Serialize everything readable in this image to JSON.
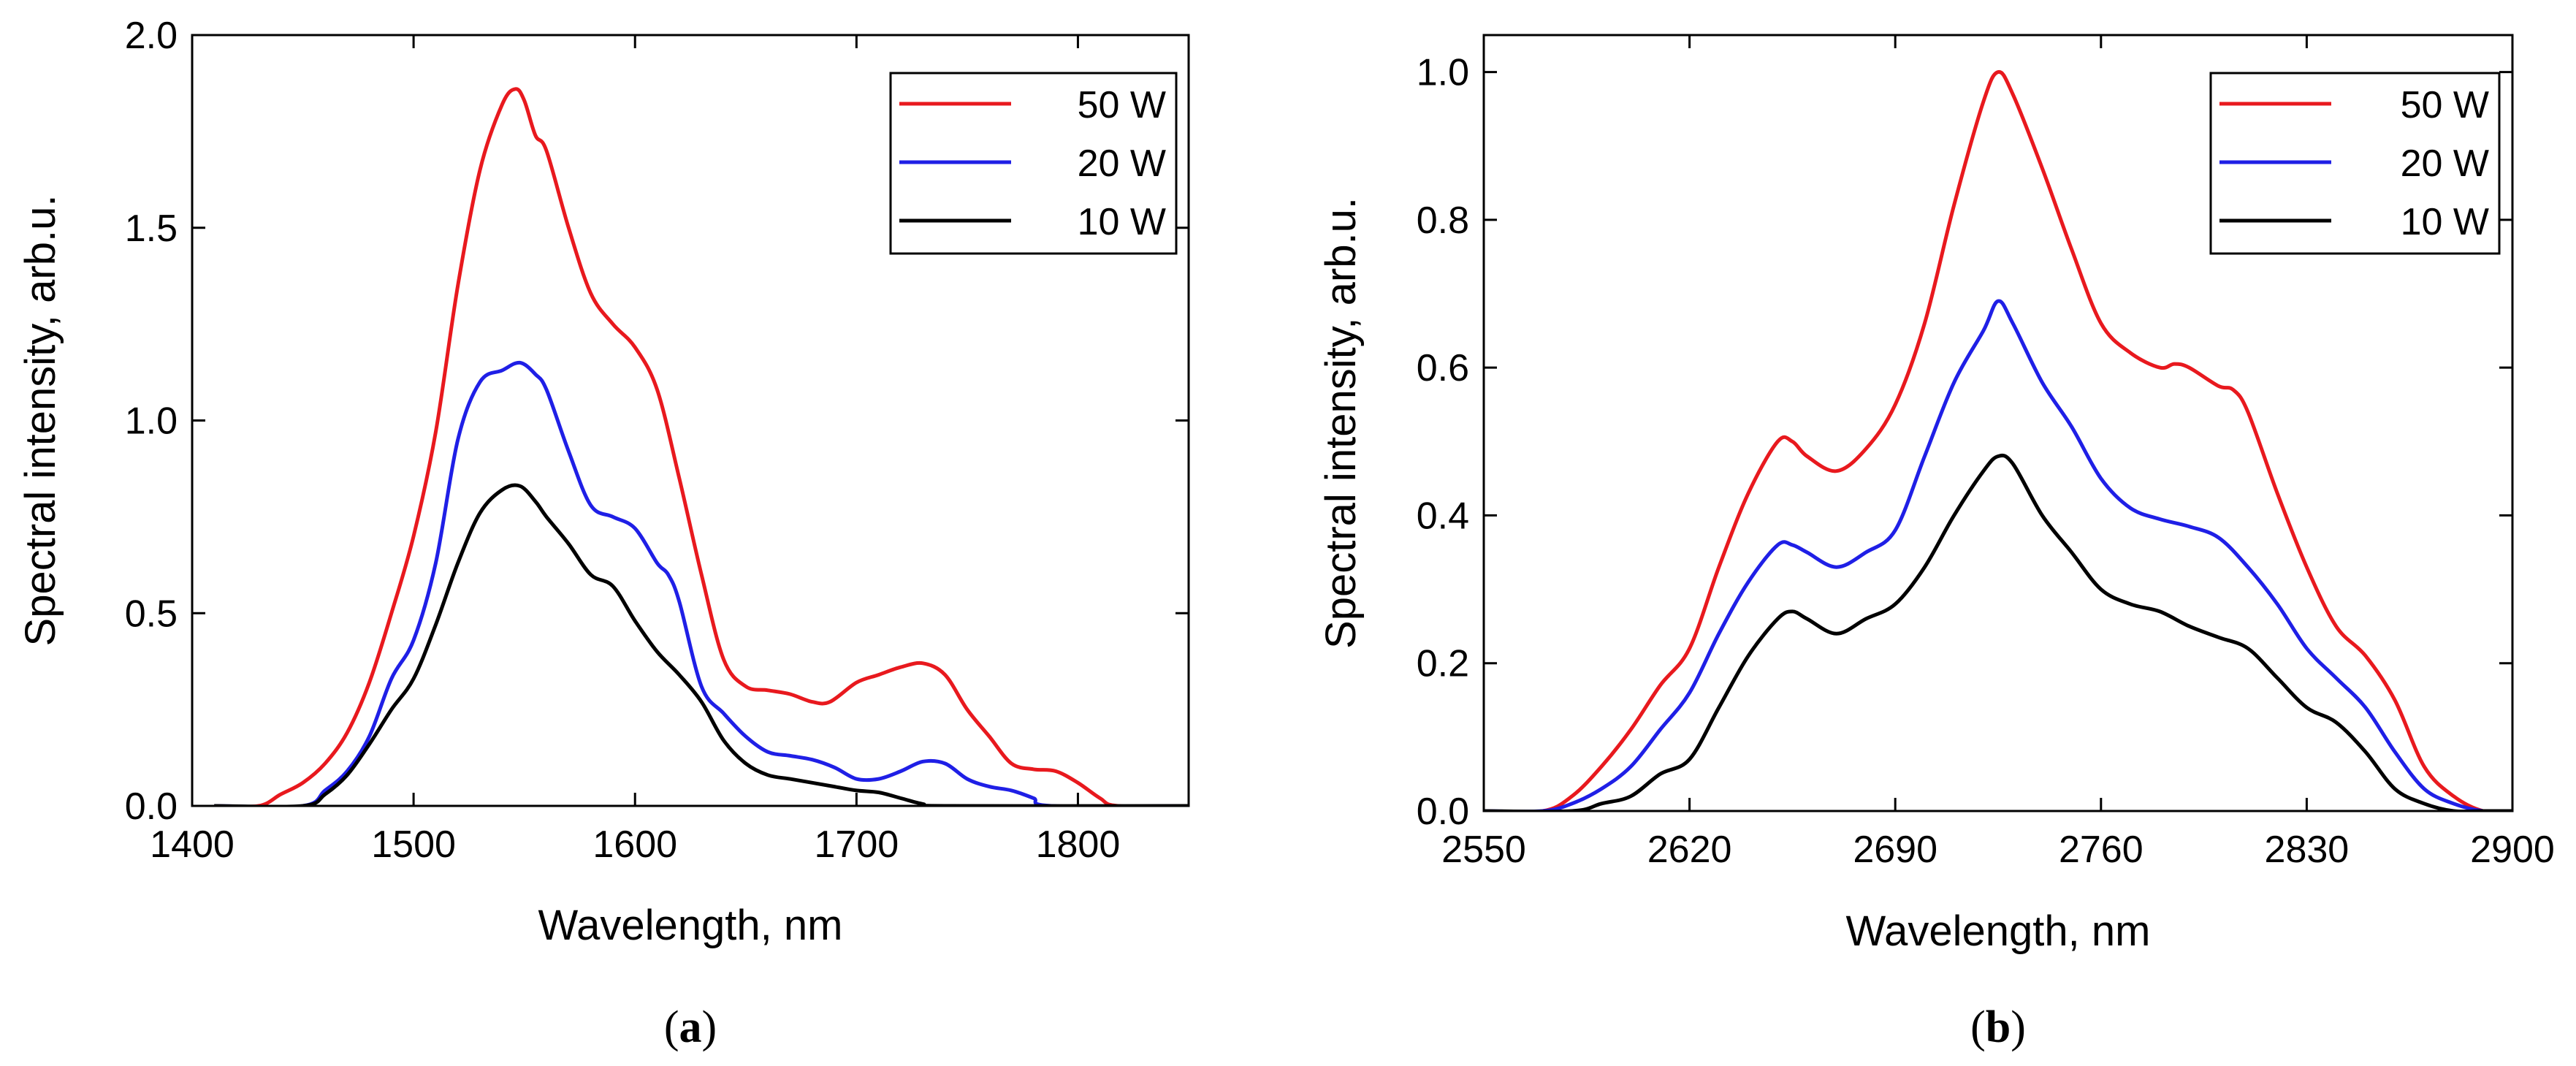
{
  "chart_data": [
    {
      "type": "line",
      "panel_label": {
        "open": "(",
        "letter": "a",
        "close": ")"
      },
      "xlabel": "Wavelength, nm",
      "ylabel": "Spectral intensity, arb.u.",
      "xlim": [
        1400,
        1850
      ],
      "ylim": [
        0,
        2.0
      ],
      "xticks": [
        1400,
        1500,
        1600,
        1700,
        1800
      ],
      "xtick_labels": [
        "1400",
        "1500",
        "1600",
        "1700",
        "1800"
      ],
      "yticks": [
        0,
        0.5,
        1.0,
        1.5,
        2.0
      ],
      "ytick_labels": [
        "0.0",
        "0.5",
        "1.0",
        "1.5",
        "2.0"
      ],
      "legend_position": "top-right",
      "series": [
        {
          "name": "50 W",
          "color": "#e8191e",
          "x": [
            1410,
            1430,
            1440,
            1450,
            1460,
            1470,
            1480,
            1490,
            1500,
            1510,
            1520,
            1530,
            1540,
            1546,
            1550,
            1555,
            1560,
            1570,
            1580,
            1590,
            1600,
            1610,
            1620,
            1630,
            1640,
            1650,
            1660,
            1670,
            1680,
            1688,
            1700,
            1710,
            1720,
            1730,
            1740,
            1750,
            1760,
            1770,
            1780,
            1790,
            1800,
            1810,
            1818,
            1850
          ],
          "values": [
            0,
            0,
            0.03,
            0.06,
            0.11,
            0.19,
            0.32,
            0.5,
            0.7,
            0.97,
            1.35,
            1.65,
            1.82,
            1.86,
            1.83,
            1.74,
            1.7,
            1.5,
            1.33,
            1.25,
            1.19,
            1.08,
            0.85,
            0.6,
            0.38,
            0.31,
            0.3,
            0.29,
            0.27,
            0.27,
            0.32,
            0.34,
            0.36,
            0.37,
            0.34,
            0.25,
            0.18,
            0.11,
            0.095,
            0.09,
            0.06,
            0.02,
            0,
            0
          ]
        },
        {
          "name": "20 W",
          "color": "#1f1fe6",
          "x": [
            1410,
            1450,
            1460,
            1470,
            1480,
            1490,
            1500,
            1510,
            1520,
            1530,
            1540,
            1548,
            1555,
            1560,
            1570,
            1580,
            1590,
            1600,
            1610,
            1615,
            1620,
            1630,
            1640,
            1650,
            1660,
            1670,
            1680,
            1690,
            1700,
            1710,
            1720,
            1730,
            1740,
            1750,
            1760,
            1770,
            1780,
            1788,
            1850
          ],
          "values": [
            0,
            0,
            0.04,
            0.09,
            0.18,
            0.33,
            0.43,
            0.63,
            0.95,
            1.1,
            1.13,
            1.15,
            1.12,
            1.08,
            0.92,
            0.78,
            0.75,
            0.72,
            0.63,
            0.6,
            0.53,
            0.31,
            0.24,
            0.18,
            0.14,
            0.13,
            0.12,
            0.1,
            0.07,
            0.07,
            0.09,
            0.115,
            0.11,
            0.07,
            0.05,
            0.04,
            0.02,
            0,
            0
          ]
        },
        {
          "name": "10 W",
          "color": "#000000",
          "x": [
            1410,
            1450,
            1460,
            1470,
            1480,
            1490,
            1500,
            1510,
            1520,
            1530,
            1540,
            1548,
            1555,
            1560,
            1570,
            1580,
            1590,
            1600,
            1610,
            1620,
            1630,
            1640,
            1650,
            1660,
            1670,
            1680,
            1690,
            1700,
            1710,
            1720,
            1730,
            1740,
            1850
          ],
          "values": [
            0,
            0,
            0.03,
            0.08,
            0.16,
            0.25,
            0.33,
            0.47,
            0.63,
            0.76,
            0.82,
            0.83,
            0.79,
            0.75,
            0.68,
            0.6,
            0.57,
            0.48,
            0.4,
            0.34,
            0.27,
            0.17,
            0.11,
            0.08,
            0.07,
            0.06,
            0.05,
            0.04,
            0.035,
            0.02,
            0.005,
            0,
            0
          ]
        }
      ]
    },
    {
      "type": "line",
      "panel_label": {
        "open": "(",
        "letter": "b",
        "close": ")"
      },
      "xlabel": "Wavelength, nm",
      "ylabel": "Spectral intensity, arb.u.",
      "xlim": [
        2550,
        2900
      ],
      "ylim": [
        0,
        1.05
      ],
      "xticks": [
        2550,
        2620,
        2690,
        2760,
        2830,
        2900
      ],
      "xtick_labels": [
        "2550",
        "2620",
        "2690",
        "2760",
        "2830",
        "2900"
      ],
      "yticks": [
        0,
        0.2,
        0.4,
        0.6,
        0.8,
        1.0
      ],
      "ytick_labels": [
        "0.0",
        "0.2",
        "0.4",
        "0.6",
        "0.8",
        "1.0"
      ],
      "legend_position": "top-right",
      "series": [
        {
          "name": "50 W",
          "color": "#e8191e",
          "x": [
            2550,
            2570,
            2580,
            2590,
            2600,
            2610,
            2620,
            2630,
            2640,
            2650,
            2655,
            2660,
            2670,
            2680,
            2690,
            2700,
            2710,
            2720,
            2725,
            2730,
            2740,
            2750,
            2760,
            2770,
            2780,
            2785,
            2790,
            2800,
            2805,
            2810,
            2820,
            2830,
            2840,
            2850,
            2860,
            2870,
            2880,
            2890,
            2900
          ],
          "values": [
            0,
            0,
            0.02,
            0.06,
            0.11,
            0.17,
            0.22,
            0.33,
            0.43,
            0.5,
            0.5,
            0.48,
            0.46,
            0.49,
            0.55,
            0.66,
            0.82,
            0.96,
            1.0,
            0.97,
            0.87,
            0.76,
            0.66,
            0.62,
            0.6,
            0.605,
            0.6,
            0.575,
            0.57,
            0.54,
            0.43,
            0.33,
            0.25,
            0.21,
            0.15,
            0.06,
            0.02,
            0,
            0
          ]
        },
        {
          "name": "20 W",
          "color": "#1f1fe6",
          "x": [
            2550,
            2570,
            2580,
            2590,
            2600,
            2610,
            2620,
            2630,
            2640,
            2650,
            2655,
            2660,
            2670,
            2680,
            2690,
            2700,
            2710,
            2720,
            2725,
            2730,
            2740,
            2750,
            2760,
            2770,
            2780,
            2790,
            2800,
            2810,
            2820,
            2830,
            2840,
            2850,
            2860,
            2870,
            2880,
            2890,
            2900
          ],
          "values": [
            0,
            0,
            0.01,
            0.03,
            0.06,
            0.11,
            0.16,
            0.24,
            0.31,
            0.36,
            0.36,
            0.35,
            0.33,
            0.35,
            0.38,
            0.48,
            0.58,
            0.65,
            0.69,
            0.66,
            0.58,
            0.52,
            0.45,
            0.41,
            0.395,
            0.385,
            0.37,
            0.33,
            0.28,
            0.22,
            0.18,
            0.14,
            0.08,
            0.03,
            0.01,
            0,
            0
          ]
        },
        {
          "name": "10 W",
          "color": "#000000",
          "x": [
            2550,
            2580,
            2590,
            2600,
            2610,
            2620,
            2630,
            2640,
            2650,
            2655,
            2660,
            2670,
            2680,
            2690,
            2700,
            2710,
            2720,
            2725,
            2730,
            2740,
            2750,
            2760,
            2770,
            2780,
            2790,
            2800,
            2810,
            2820,
            2830,
            2840,
            2850,
            2860,
            2870,
            2880,
            2890,
            2900
          ],
          "values": [
            0,
            0,
            0.01,
            0.02,
            0.05,
            0.07,
            0.14,
            0.21,
            0.26,
            0.27,
            0.26,
            0.24,
            0.26,
            0.28,
            0.33,
            0.4,
            0.46,
            0.48,
            0.47,
            0.4,
            0.35,
            0.3,
            0.28,
            0.27,
            0.25,
            0.235,
            0.22,
            0.18,
            0.14,
            0.12,
            0.08,
            0.03,
            0.01,
            0,
            0,
            0
          ]
        }
      ]
    }
  ]
}
